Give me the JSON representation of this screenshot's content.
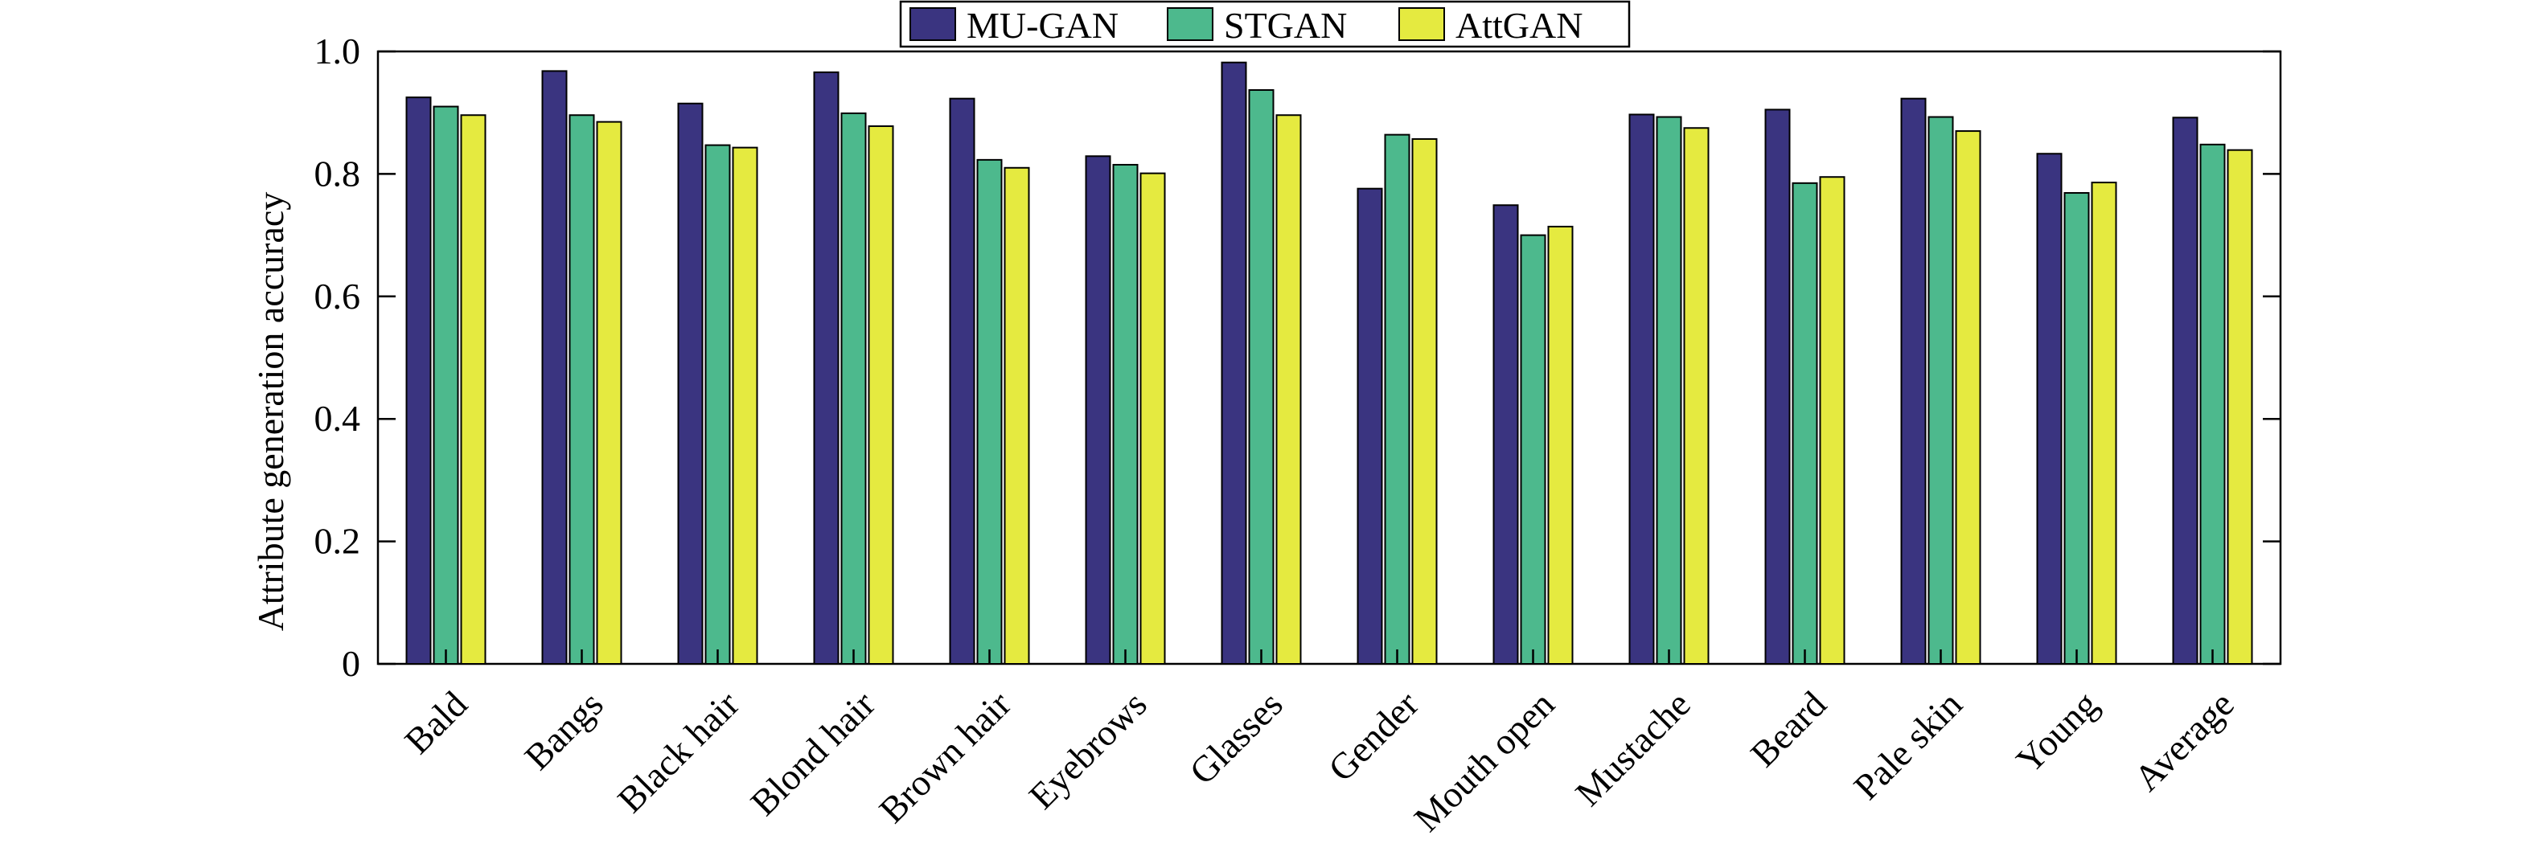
{
  "chart_data": {
    "type": "bar",
    "title": "",
    "xlabel": "",
    "ylabel": "Attribute generation accuracy",
    "ylim": [
      0,
      1.0
    ],
    "yticks": [
      0,
      0.2,
      0.4,
      0.6,
      0.8,
      1.0
    ],
    "ytick_labels": [
      "0",
      "0.2",
      "0.4",
      "0.6",
      "0.8",
      "1.0"
    ],
    "grid": false,
    "legend_position": "top-center",
    "categories": [
      "Bald",
      "Bangs",
      "Black hair",
      "Blond hair",
      "Brown hair",
      "Eyebrows",
      "Glasses",
      "Gender",
      "Mouth open",
      "Mustache",
      "Beard",
      "Pale skin",
      "Young",
      "Average"
    ],
    "series": [
      {
        "name": "MU-GAN",
        "color": "#3a3480",
        "values": [
          0.925,
          0.968,
          0.915,
          0.966,
          0.923,
          0.829,
          0.982,
          0.776,
          0.749,
          0.897,
          0.905,
          0.923,
          0.833,
          0.892
        ]
      },
      {
        "name": "STGAN",
        "color": "#4db98d",
        "values": [
          0.91,
          0.896,
          0.847,
          0.899,
          0.823,
          0.815,
          0.937,
          0.864,
          0.7,
          0.893,
          0.785,
          0.893,
          0.769,
          0.848
        ]
      },
      {
        "name": "AttGAN",
        "color": "#e5ea40",
        "values": [
          0.896,
          0.885,
          0.843,
          0.878,
          0.81,
          0.801,
          0.896,
          0.857,
          0.714,
          0.875,
          0.795,
          0.87,
          0.786,
          0.839
        ]
      }
    ]
  }
}
